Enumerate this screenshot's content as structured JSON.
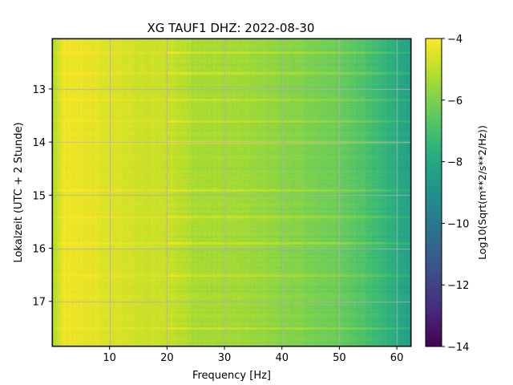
{
  "chart_data": {
    "type": "heatmap",
    "title": "XG TAUF1  DHZ: 2022-08-30",
    "xlabel": "Frequency [Hz]",
    "ylabel": "Lokalzeit (UTC + 2 Stunde)",
    "xlim": [
      0,
      62.5
    ],
    "ylim": [
      17.85,
      12.05
    ],
    "x_ticks": [
      10,
      20,
      30,
      40,
      50,
      60
    ],
    "x_tick_labels": [
      "10",
      "20",
      "30",
      "40",
      "50",
      "60"
    ],
    "y_ticks": [
      13,
      14,
      15,
      16,
      17
    ],
    "y_tick_labels": [
      "13",
      "14",
      "15",
      "16",
      "17"
    ],
    "grid": true,
    "colormap": "viridis",
    "colorbar": {
      "label": "Log10(Sqrt(m**2/s**2/Hz))",
      "range": [
        -14,
        -4
      ],
      "ticks": [
        -4,
        -6,
        -8,
        -10,
        -12,
        -14
      ],
      "tick_labels": [
        "−4",
        "−6",
        "−8",
        "−10",
        "−12",
        "−14"
      ]
    },
    "frequency_profile": {
      "frequency_hz": [
        0.5,
        2,
        5,
        10,
        15,
        20,
        25,
        30,
        35,
        40,
        45,
        50,
        55,
        58,
        60,
        62.5
      ],
      "log10_amplitude": [
        -5.0,
        -4.2,
        -4.3,
        -4.5,
        -4.7,
        -4.8,
        -5.3,
        -5.4,
        -5.5,
        -5.8,
        -6.0,
        -6.3,
        -6.9,
        -7.4,
        -7.9,
        -8.3
      ]
    },
    "horizontal_bands_hour": [
      12.3,
      12.7,
      13.2,
      13.6,
      14.0,
      14.9,
      15.4,
      15.9,
      16.5,
      17.5
    ]
  }
}
